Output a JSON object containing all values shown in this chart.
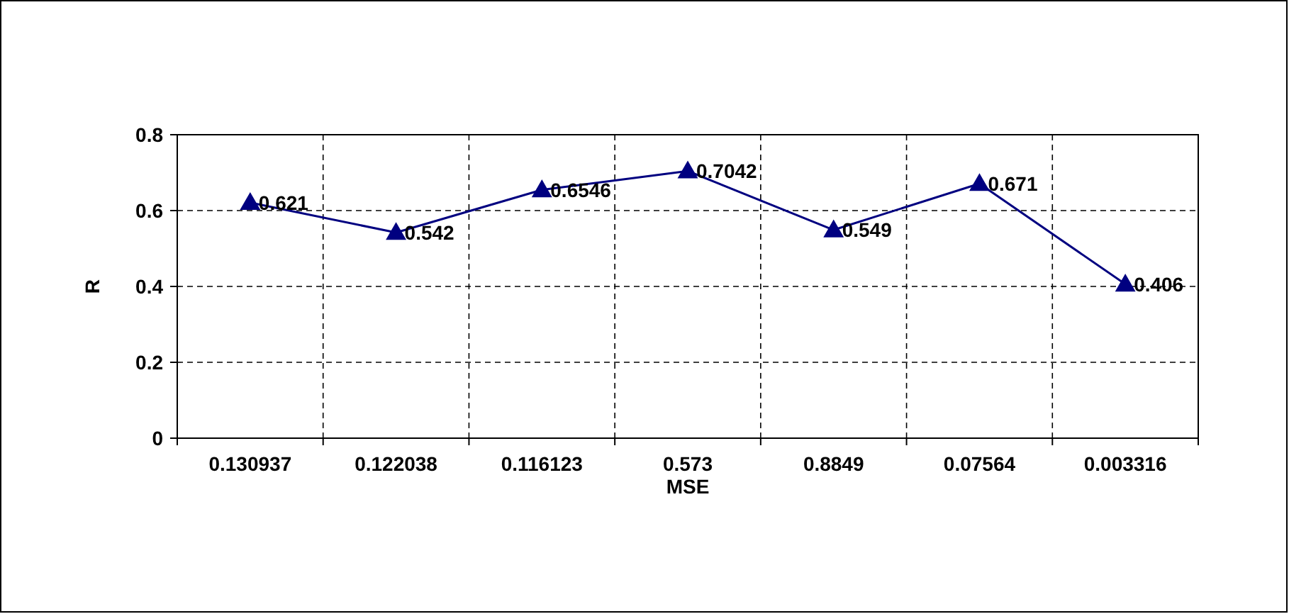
{
  "chart_data": {
    "type": "line",
    "xlabel": "MSE",
    "ylabel": "R",
    "categories": [
      "0.130937",
      "0.122038",
      "0.116123",
      "0.573",
      "0.8849",
      "0.07564",
      "0.003316"
    ],
    "series": [
      {
        "color": "#000080",
        "values": [
          0.621,
          0.542,
          0.6546,
          0.7042,
          0.549,
          0.671,
          0.406
        ]
      }
    ],
    "ylim": [
      0,
      0.8
    ],
    "yticks": [
      0,
      0.2,
      0.4,
      0.6,
      0.8
    ],
    "grid": true,
    "marker": "triangle",
    "line_style": "solid",
    "data_labels": true
  }
}
